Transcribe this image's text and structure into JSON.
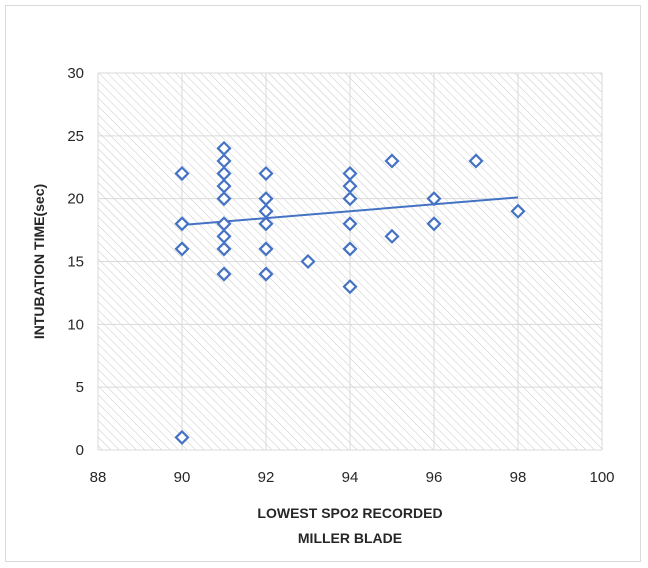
{
  "chart_data": {
    "type": "scatter",
    "title": "",
    "xlabel": "LOWEST SPO2 RECORDED",
    "xlabel_line2": "MILLER BLADE",
    "ylabel": "INTUBATION TIME(sec)",
    "xlim": [
      88,
      100
    ],
    "ylim": [
      0,
      30
    ],
    "xticks": [
      88,
      90,
      92,
      94,
      96,
      98,
      100
    ],
    "yticks": [
      0,
      5,
      10,
      15,
      20,
      25,
      30
    ],
    "grid": true,
    "plot_background": "hatched",
    "series": [
      {
        "marker": "diamond-open",
        "color": "#4472C4",
        "points": [
          [
            90,
            22
          ],
          [
            90,
            18
          ],
          [
            90,
            16
          ],
          [
            90,
            1
          ],
          [
            91,
            24
          ],
          [
            91,
            23
          ],
          [
            91,
            22
          ],
          [
            91,
            21
          ],
          [
            91,
            20
          ],
          [
            91,
            18
          ],
          [
            91,
            17
          ],
          [
            91,
            16
          ],
          [
            91,
            14
          ],
          [
            92,
            22
          ],
          [
            92,
            20
          ],
          [
            92,
            19
          ],
          [
            92,
            18
          ],
          [
            92,
            16
          ],
          [
            92,
            14
          ],
          [
            93,
            15
          ],
          [
            94,
            22
          ],
          [
            94,
            21
          ],
          [
            94,
            20
          ],
          [
            94,
            18
          ],
          [
            94,
            16
          ],
          [
            94,
            13
          ],
          [
            95,
            23
          ],
          [
            95,
            17
          ],
          [
            96,
            20
          ],
          [
            96,
            18
          ],
          [
            97,
            23
          ],
          [
            98,
            19
          ]
        ]
      }
    ],
    "trendline": {
      "type": "linear",
      "color": "#4472C4",
      "from": [
        90,
        17.9
      ],
      "to": [
        98,
        20.1
      ]
    }
  }
}
